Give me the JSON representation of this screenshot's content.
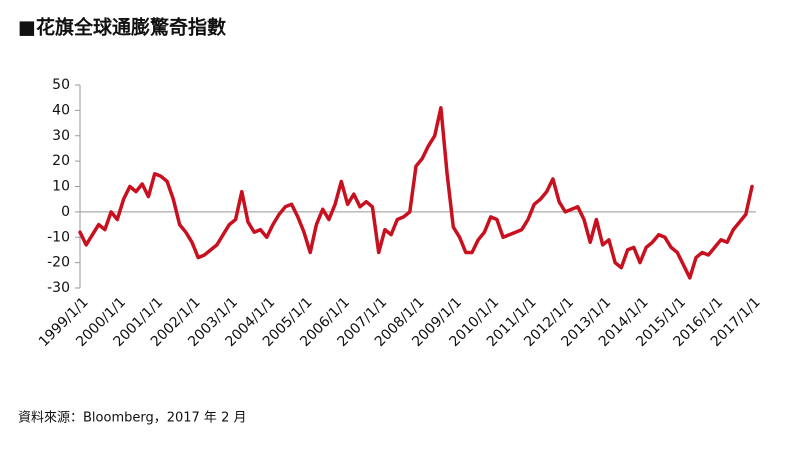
{
  "chart_data": {
    "type": "line",
    "title": "■花旗全球通膨驚奇指數",
    "source": "資料來源：Bloomberg，2017 年 2 月",
    "categories": [
      "1999/1/1",
      null,
      null,
      null,
      null,
      null,
      "2000/1/1",
      null,
      null,
      null,
      null,
      null,
      "2001/1/1",
      null,
      null,
      null,
      null,
      null,
      "2002/1/1",
      null,
      null,
      null,
      null,
      null,
      "2003/1/1",
      null,
      null,
      null,
      null,
      null,
      "2004/1/1",
      null,
      null,
      null,
      null,
      null,
      "2005/1/1",
      null,
      null,
      null,
      null,
      null,
      "2006/1/1",
      null,
      null,
      null,
      null,
      null,
      "2007/1/1",
      null,
      null,
      null,
      null,
      null,
      "2008/1/1",
      null,
      null,
      null,
      null,
      null,
      "2009/1/1",
      null,
      null,
      null,
      null,
      null,
      "2010/1/1",
      null,
      null,
      null,
      null,
      null,
      "2011/1/1",
      null,
      null,
      null,
      null,
      null,
      "2012/1/1",
      null,
      null,
      null,
      null,
      null,
      "2013/1/1",
      null,
      null,
      null,
      null,
      null,
      "2014/1/1",
      null,
      null,
      null,
      null,
      null,
      "2015/1/1",
      null,
      null,
      null,
      null,
      null,
      "2016/1/1",
      null,
      null,
      null,
      null,
      null,
      "2017/1/1"
    ],
    "series": [
      {
        "name": "花旗全球通膨驚奇指數",
        "color": "#c8101e",
        "values": [
          -8,
          -13,
          -9,
          -5,
          -7,
          0,
          -3,
          5,
          10,
          8,
          11,
          6,
          15,
          14,
          12,
          5,
          -5,
          -8,
          -12,
          -18,
          -17,
          -15,
          -13,
          -9,
          -5,
          -3,
          8,
          -4,
          -8,
          -7,
          -10,
          -5,
          -1,
          2,
          3,
          -2,
          -8,
          -16,
          -5,
          1,
          -3,
          3,
          12,
          3,
          7,
          2,
          4,
          2,
          -16,
          -7,
          -9,
          -3,
          -2,
          0,
          18,
          21,
          26,
          30,
          41,
          15,
          -6,
          -10,
          -16,
          -16,
          -11,
          -8,
          -2,
          -3,
          -10,
          -9,
          -8,
          -7,
          -3,
          3,
          5,
          8,
          13,
          4,
          0,
          1,
          2,
          -3,
          -12,
          -3,
          -13,
          -11,
          -20,
          -22,
          -15,
          -14,
          -20,
          -14,
          -12,
          -9,
          -10,
          -14,
          -16,
          -21,
          -26,
          -18,
          -16,
          -17,
          -14,
          -11,
          -12,
          -7,
          -4,
          -1,
          10
        ]
      }
    ],
    "ylim": [
      -30,
      50
    ],
    "yticks": [
      -30,
      -20,
      -10,
      0,
      10,
      20,
      30,
      40,
      50
    ]
  }
}
